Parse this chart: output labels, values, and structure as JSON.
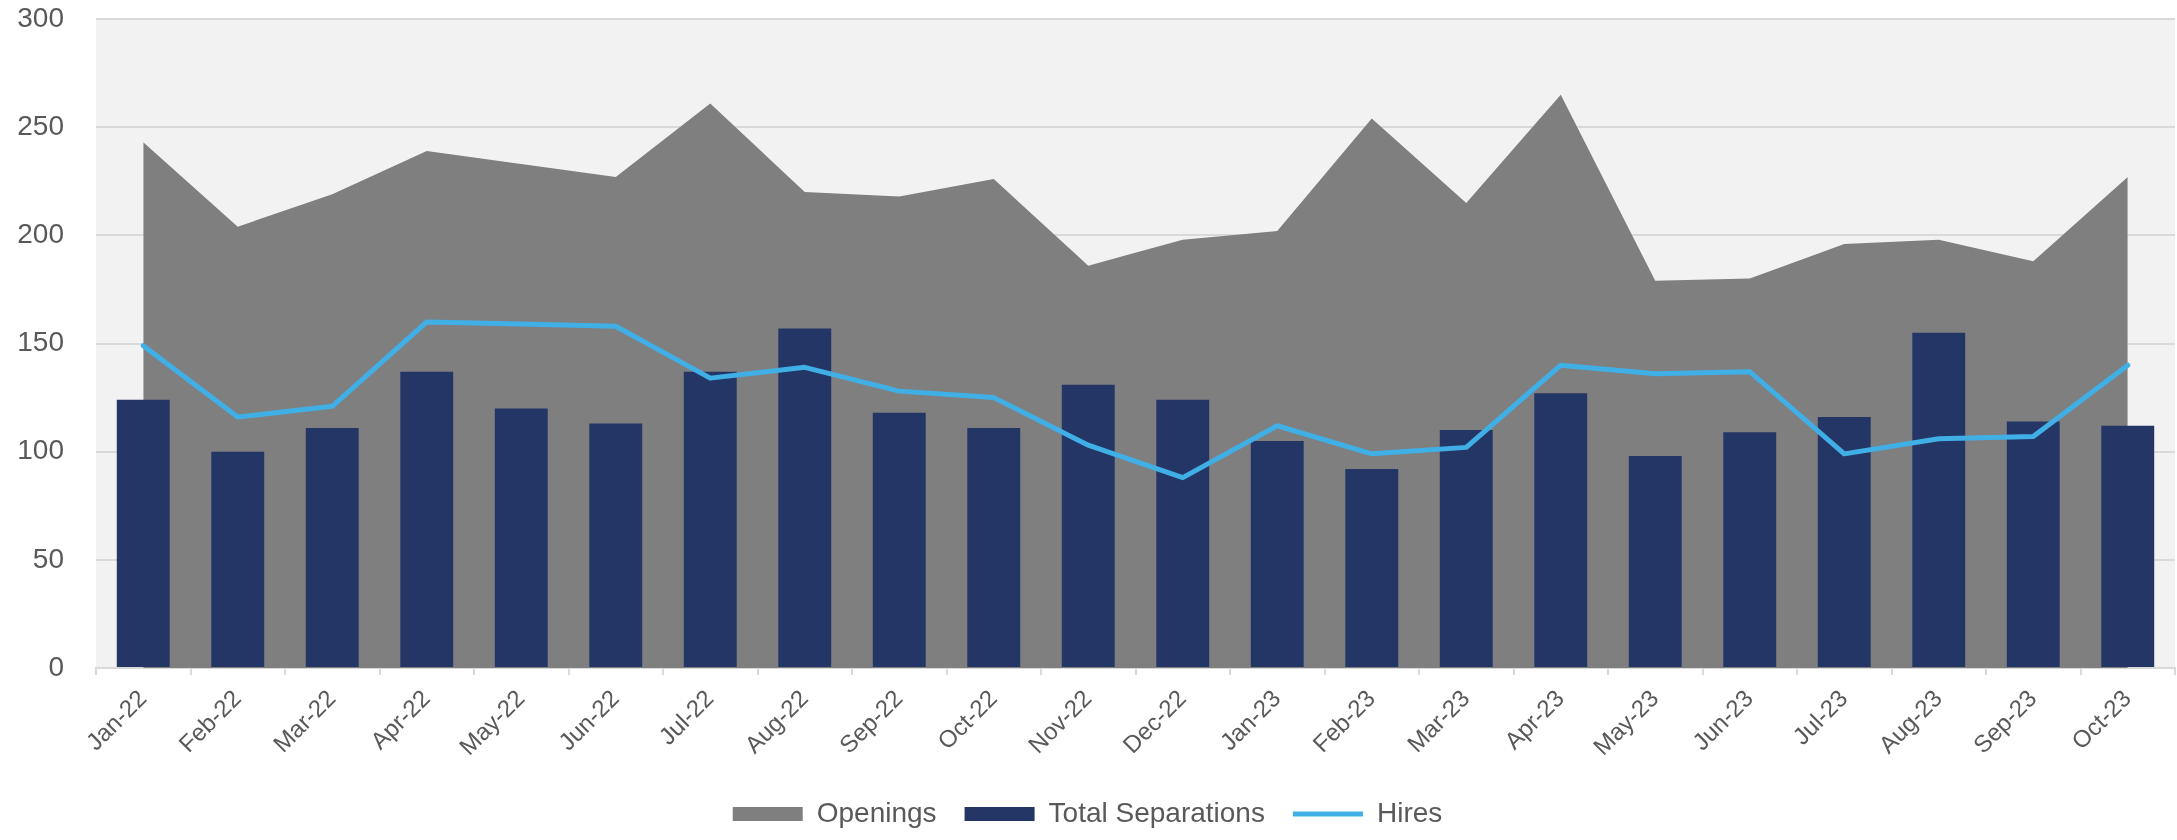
{
  "chart_data": {
    "type": "bar",
    "categories": [
      "Jan-22",
      "Feb-22",
      "Mar-22",
      "Apr-22",
      "May-22",
      "Jun-22",
      "Jul-22",
      "Aug-22",
      "Sep-22",
      "Oct-22",
      "Nov-22",
      "Dec-22",
      "Jan-23",
      "Feb-23",
      "Mar-23",
      "Apr-23",
      "May-23",
      "Jun-23",
      "Jul-23",
      "Aug-23",
      "Sep-23",
      "Oct-23"
    ],
    "series": [
      {
        "name": "Openings",
        "type": "area",
        "color": "#7f7f7f",
        "values": [
          243,
          204,
          219,
          239,
          233,
          227,
          261,
          220,
          218,
          226,
          186,
          198,
          202,
          254,
          215,
          265,
          179,
          180,
          196,
          198,
          188,
          227
        ]
      },
      {
        "name": "Total Separations",
        "color": "#243666",
        "values": [
          124,
          100,
          111,
          137,
          120,
          113,
          137,
          157,
          118,
          111,
          131,
          124,
          105,
          92,
          110,
          127,
          98,
          109,
          116,
          155,
          114,
          112
        ]
      },
      {
        "name": "Hires",
        "type": "line",
        "color": "#3fafe6",
        "values": [
          149,
          116,
          121,
          160,
          159,
          158,
          134,
          139,
          128,
          125,
          103,
          88,
          112,
          99,
          102,
          140,
          136,
          137,
          99,
          106,
          107,
          140
        ]
      }
    ],
    "ylim": [
      0,
      300
    ],
    "yticks": [
      0,
      50,
      100,
      150,
      200,
      250,
      300
    ],
    "grid": "y",
    "legend": "bottom",
    "marker": "none",
    "line_style": "solid"
  }
}
